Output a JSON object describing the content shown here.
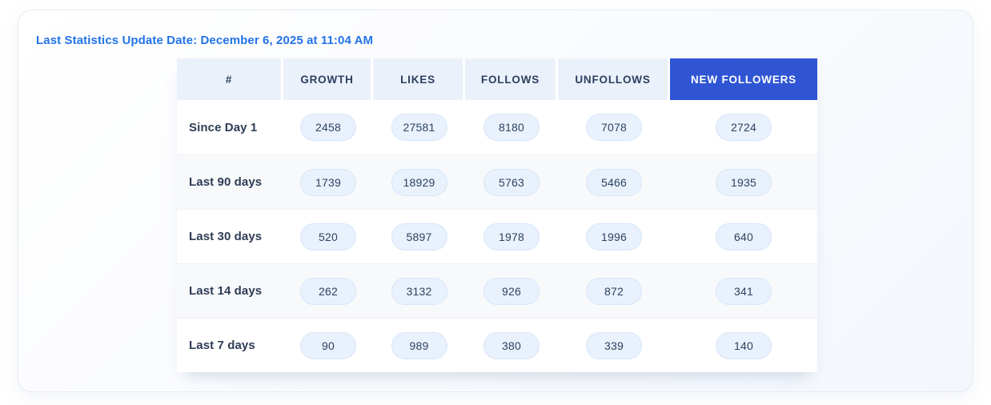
{
  "card": {
    "update_label": "Last Statistics Update Date: December 6, 2025 at 11:04 AM"
  },
  "table": {
    "columns": [
      "#",
      "GROWTH",
      "LIKES",
      "FOLLOWS",
      "UNFOLLOWS",
      "NEW FOLLOWERS"
    ],
    "highlighted_column": "NEW FOLLOWERS",
    "rows": [
      {
        "label": "Since Day 1",
        "values": [
          "2458",
          "27581",
          "8180",
          "7078",
          "2724"
        ]
      },
      {
        "label": "Last 90 days",
        "values": [
          "1739",
          "18929",
          "5763",
          "5466",
          "1935"
        ]
      },
      {
        "label": "Last 30 days",
        "values": [
          "520",
          "5897",
          "1978",
          "1996",
          "640"
        ]
      },
      {
        "label": "Last 14 days",
        "values": [
          "262",
          "3132",
          "926",
          "872",
          "341"
        ]
      },
      {
        "label": "Last 7 days",
        "values": [
          "90",
          "989",
          "380",
          "339",
          "140"
        ]
      }
    ]
  },
  "colors": {
    "accent_blue": "#2f55d4",
    "title_blue": "#2273e8",
    "header_cell_bg": "#eaf1fb",
    "header_text": "#2d3e5f",
    "pill_bg": "#e8f1fc",
    "pill_border": "#d7e6f9",
    "pill_text": "#2e4260",
    "row_stripe": "#f7f9fb"
  }
}
